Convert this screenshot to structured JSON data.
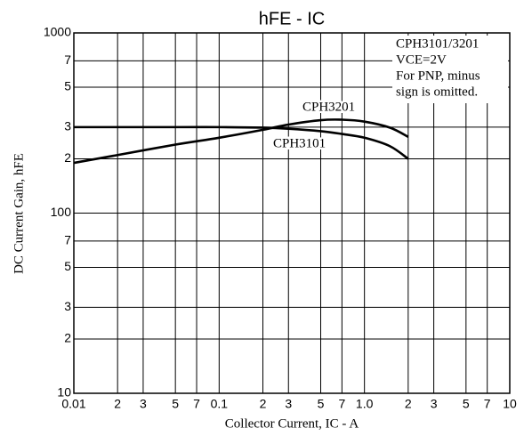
{
  "chart_data": {
    "type": "line",
    "title": "hFE - IC",
    "x_label": "Collector Current, IC - A",
    "y_label": "DC Current Gain, hFE",
    "annotations": [
      "CPH3101/3201",
      "VCE=2V",
      "For PNP, minus",
      "sign is omitted."
    ],
    "xscale": "log",
    "yscale": "log",
    "grid": true,
    "xlim": [
      0.01,
      10
    ],
    "ylim": [
      10,
      1000
    ],
    "xticks": [
      0.01,
      {
        "value": 0.02,
        "label": "2"
      },
      {
        "value": 0.03,
        "label": "3"
      },
      {
        "value": 0.05,
        "label": "5"
      },
      {
        "value": 0.07,
        "label": "7"
      },
      0.1,
      {
        "value": 0.2,
        "label": "2"
      },
      {
        "value": 0.3,
        "label": "3"
      },
      {
        "value": 0.5,
        "label": "5"
      },
      {
        "value": 0.7,
        "label": "7"
      },
      {
        "value": 1,
        "label": "1.0"
      },
      2,
      3,
      5,
      7,
      10
    ],
    "yticks": [
      10,
      {
        "value": 20,
        "label": "2"
      },
      {
        "value": 30,
        "label": "3"
      },
      {
        "value": 50,
        "label": "5"
      },
      {
        "value": 70,
        "label": "7"
      },
      100,
      {
        "value": 200,
        "label": "2"
      },
      {
        "value": 300,
        "label": "3"
      },
      {
        "value": 500,
        "label": "5"
      },
      {
        "value": 700,
        "label": "7"
      },
      1000
    ],
    "x": [
      0.01,
      0.02,
      0.05,
      0.1,
      0.2,
      0.3,
      0.5,
      0.7,
      1,
      1.5,
      2
    ],
    "series": [
      {
        "name": "CPH3201",
        "color": "#000000",
        "values": [
          190,
          210,
          240,
          262,
          290,
          310,
          328,
          330,
          322,
          298,
          265
        ]
      },
      {
        "name": "CPH3101",
        "color": "#000000",
        "values": [
          300,
          300,
          300,
          300,
          298,
          294,
          285,
          275,
          262,
          235,
          200
        ]
      }
    ]
  }
}
